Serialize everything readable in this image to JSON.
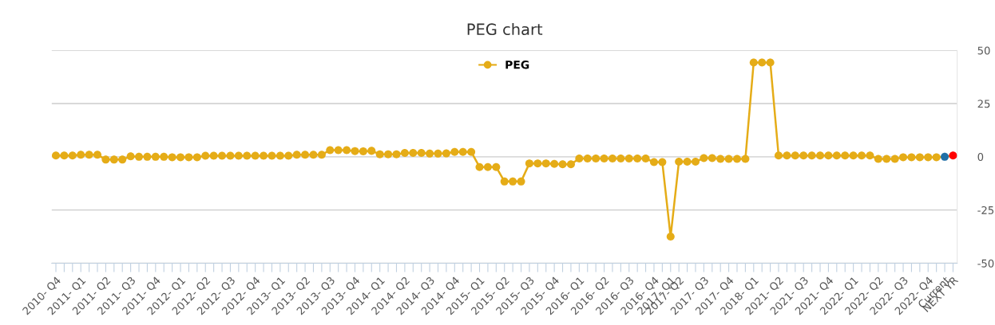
{
  "chart_data": {
    "type": "line",
    "title": "PEG chart",
    "categories": [
      "2010- Q4",
      null,
      null,
      "2011- Q1",
      null,
      null,
      "2011- Q2",
      null,
      null,
      "2011- Q3",
      null,
      null,
      "2011- Q4",
      null,
      null,
      "2012- Q1",
      null,
      null,
      "2012- Q2",
      null,
      null,
      "2012- Q3",
      null,
      null,
      "2012- Q4",
      null,
      null,
      "2013- Q1",
      null,
      null,
      "2013- Q2",
      null,
      null,
      "2013- Q3",
      null,
      null,
      "2013- Q4",
      null,
      null,
      "2014- Q1",
      null,
      null,
      "2014- Q2",
      null,
      null,
      "2014- Q3",
      null,
      null,
      "2014- Q4",
      null,
      null,
      "2015- Q1",
      null,
      null,
      "2015- Q2",
      null,
      null,
      "2015- Q3",
      null,
      null,
      "2015- Q4",
      null,
      null,
      "2016- Q1",
      null,
      null,
      "2016- Q2",
      null,
      null,
      "2016- Q3",
      null,
      null,
      "2016- Q4",
      null,
      "2017- Q1",
      "2017- Q2",
      null,
      null,
      "2017- Q3",
      null,
      null,
      "2017- Q4",
      null,
      null,
      "2018- Q1",
      null,
      null,
      "2021- Q2",
      null,
      null,
      "2021- Q3",
      null,
      null,
      "2021- Q4",
      null,
      null,
      "2022- Q1",
      null,
      null,
      "2022- Q2",
      null,
      null,
      "2022- Q3",
      null,
      null,
      "2022- Q4",
      null,
      "Current",
      "NEXT YR"
    ],
    "series": [
      {
        "name": "PEG",
        "color": "#e5ac17",
        "colors": [
          "#e5ac17",
          "#e5ac17",
          "#e5ac17",
          "#e5ac17",
          "#e5ac17",
          "#e5ac17",
          "#e5ac17",
          "#e5ac17",
          "#e5ac17",
          "#e5ac17",
          "#e5ac17",
          "#e5ac17",
          "#e5ac17",
          "#e5ac17",
          "#e5ac17",
          "#e5ac17",
          "#e5ac17",
          "#e5ac17",
          "#e5ac17",
          "#e5ac17",
          "#e5ac17",
          "#e5ac17",
          "#e5ac17",
          "#e5ac17",
          "#e5ac17",
          "#e5ac17",
          "#e5ac17",
          "#e5ac17",
          "#e5ac17",
          "#e5ac17",
          "#e5ac17",
          "#e5ac17",
          "#e5ac17",
          "#e5ac17",
          "#e5ac17",
          "#e5ac17",
          "#e5ac17",
          "#e5ac17",
          "#e5ac17",
          "#e5ac17",
          "#e5ac17",
          "#e5ac17",
          "#e5ac17",
          "#e5ac17",
          "#e5ac17",
          "#e5ac17",
          "#e5ac17",
          "#e5ac17",
          "#e5ac17",
          "#e5ac17",
          "#e5ac17",
          "#e5ac17",
          "#e5ac17",
          "#e5ac17",
          "#e5ac17",
          "#e5ac17",
          "#e5ac17",
          "#e5ac17",
          "#e5ac17",
          "#e5ac17",
          "#e5ac17",
          "#e5ac17",
          "#e5ac17",
          "#e5ac17",
          "#e5ac17",
          "#e5ac17",
          "#e5ac17",
          "#e5ac17",
          "#e5ac17",
          "#e5ac17",
          "#e5ac17",
          "#e5ac17",
          "#e5ac17",
          "#e5ac17",
          "#e5ac17",
          "#e5ac17",
          "#e5ac17",
          "#e5ac17",
          "#e5ac17",
          "#e5ac17",
          "#e5ac17",
          "#e5ac17",
          "#e5ac17",
          "#e5ac17",
          "#e5ac17",
          "#e5ac17",
          "#e5ac17",
          "#e5ac17",
          "#e5ac17",
          "#e5ac17",
          "#e5ac17",
          "#e5ac17",
          "#e5ac17",
          "#e5ac17",
          "#e5ac17",
          "#e5ac17",
          "#e5ac17",
          "#e5ac17",
          "#e5ac17",
          "#e5ac17",
          "#e5ac17",
          "#e5ac17",
          "#e5ac17",
          "#e5ac17",
          "#e5ac17",
          "#e5ac17",
          "#e5ac17",
          "#1f6fa6",
          "#ff0000"
        ],
        "values": [
          0.6,
          0.6,
          0.6,
          1.0,
          1.0,
          1.0,
          -1.3,
          -1.3,
          -1.3,
          0.2,
          0.0,
          0.0,
          0.0,
          0.0,
          -0.2,
          -0.2,
          -0.2,
          -0.2,
          0.5,
          0.5,
          0.5,
          0.5,
          0.5,
          0.5,
          0.5,
          0.5,
          0.5,
          0.5,
          0.5,
          1.0,
          1.0,
          1.0,
          1.0,
          3.1,
          3.1,
          3.1,
          2.7,
          2.6,
          2.8,
          1.2,
          1.2,
          1.2,
          1.8,
          1.8,
          1.8,
          1.5,
          1.5,
          1.6,
          2.3,
          2.3,
          2.3,
          -4.8,
          -4.8,
          -4.8,
          -11.6,
          -11.6,
          -11.6,
          -3.1,
          -3.1,
          -3.1,
          -3.3,
          -3.5,
          -3.5,
          -0.8,
          -0.8,
          -0.8,
          -0.8,
          -0.8,
          -0.8,
          -0.8,
          -0.8,
          -0.8,
          -2.5,
          -2.5,
          -37.5,
          -2.3,
          -2.3,
          -2.3,
          -0.6,
          -0.6,
          -1.0,
          -1.0,
          -1.0,
          -1.0,
          44.3,
          44.3,
          44.3,
          0.6,
          0.6,
          0.6,
          0.6,
          0.6,
          0.6,
          0.6,
          0.6,
          0.6,
          0.6,
          0.6,
          0.6,
          -1.0,
          -1.0,
          -1.0,
          -0.2,
          -0.2,
          -0.2,
          -0.2,
          -0.2,
          0.0,
          0.6
        ]
      }
    ],
    "ylim": [
      -50,
      50
    ],
    "yticks": [
      -50,
      -25,
      0,
      25,
      50
    ],
    "grid": "y",
    "legend": "top",
    "marker": "circle",
    "line_style": "solid"
  }
}
